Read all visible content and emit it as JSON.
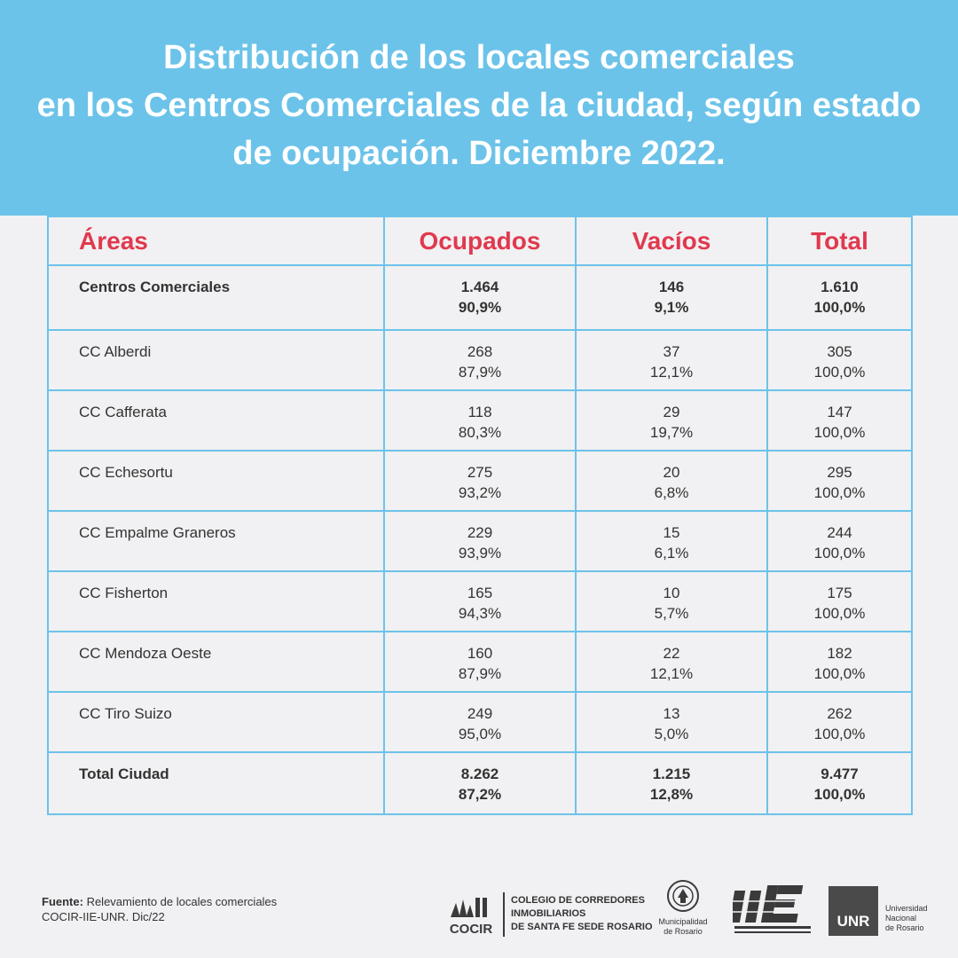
{
  "title": {
    "line1": "Distribución de los locales comerciales",
    "line2": "en los Centros Comerciales de la ciudad, según estado",
    "line3": "de ocupación. Diciembre 2022."
  },
  "table": {
    "headers": [
      "Áreas",
      "Ocupados",
      "Vacíos",
      "Total"
    ],
    "rows": [
      {
        "area": "Centros Comerciales",
        "ocupados": "1.464",
        "ocupados_pct": "90,9%",
        "vacios": "146",
        "vacios_pct": "9,1%",
        "total": "1.610",
        "total_pct": "100,0%"
      },
      {
        "area": "CC Alberdi",
        "ocupados": "268",
        "ocupados_pct": "87,9%",
        "vacios": "37",
        "vacios_pct": "12,1%",
        "total": "305",
        "total_pct": "100,0%"
      },
      {
        "area": "CC Cafferata",
        "ocupados": "118",
        "ocupados_pct": "80,3%",
        "vacios": "29",
        "vacios_pct": "19,7%",
        "total": "147",
        "total_pct": "100,0%"
      },
      {
        "area": "CC Echesortu",
        "ocupados": "275",
        "ocupados_pct": "93,2%",
        "vacios": "20",
        "vacios_pct": "6,8%",
        "total": "295",
        "total_pct": "100,0%"
      },
      {
        "area": "CC Empalme Graneros",
        "ocupados": "229",
        "ocupados_pct": "93,9%",
        "vacios": "15",
        "vacios_pct": "6,1%",
        "total": "244",
        "total_pct": "100,0%"
      },
      {
        "area": "CC Fisherton",
        "ocupados": "165",
        "ocupados_pct": "94,3%",
        "vacios": "10",
        "vacios_pct": "5,7%",
        "total": "175",
        "total_pct": "100,0%"
      },
      {
        "area": "CC Mendoza Oeste",
        "ocupados": "160",
        "ocupados_pct": "87,9%",
        "vacios": "22",
        "vacios_pct": "12,1%",
        "total": "182",
        "total_pct": "100,0%"
      },
      {
        "area": "CC Tiro Suizo",
        "ocupados": "249",
        "ocupados_pct": "95,0%",
        "vacios": "13",
        "vacios_pct": "5,0%",
        "total": "262",
        "total_pct": "100,0%"
      },
      {
        "area": "Total Ciudad",
        "ocupados": "8.262",
        "ocupados_pct": "87,2%",
        "vacios": "1.215",
        "vacios_pct": "12,8%",
        "total": "9.477",
        "total_pct": "100,0%"
      }
    ]
  },
  "footer": {
    "source_label": "Fuente:",
    "source_text": " Relevamiento de locales comerciales",
    "source_line2": "COCIR-IIE-UNR. Dic/22",
    "cocir_line1": "COLEGIO DE CORREDORES",
    "cocir_line2": "INMOBILIARIOS",
    "cocir_line3": "DE SANTA FE SEDE ROSARIO",
    "cocir_mark": "COCIR",
    "muni_line1": "Municipalidad",
    "muni_line2": "de Rosario",
    "unr_mark": "UNR",
    "unr_line1": "Universidad",
    "unr_line2": "Nacional",
    "unr_line3": "de Rosario"
  },
  "colors": {
    "header_bg": "#6cc3e9",
    "header_text": "#e0394f",
    "border": "#6cc3e9"
  }
}
